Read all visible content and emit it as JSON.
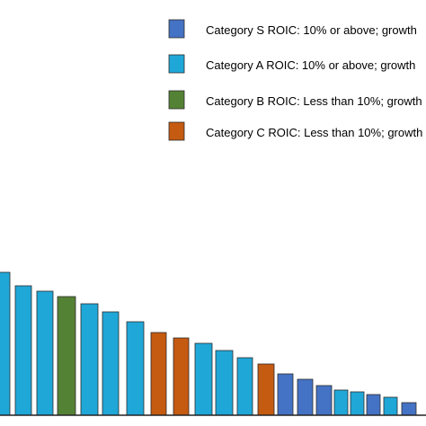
{
  "chart_data": {
    "type": "bar",
    "title": "",
    "xlabel": "",
    "ylabel": "",
    "ylim": [
      0,
      160
    ],
    "grid": false,
    "legend": {
      "position": "top-right",
      "entries": [
        {
          "key": "S",
          "label": "Category S ROIC: 10% or above; growth",
          "color": "#4472C4"
        },
        {
          "key": "A",
          "label": "Category A ROIC: 10% or above; growth",
          "color": "#1FA7D8"
        },
        {
          "key": "B",
          "label": "Category B ROIC: Less than 10%; growth",
          "color": "#548235"
        },
        {
          "key": "C",
          "label": "Category C ROIC: Less than 10%; growth",
          "color": "#C55A11"
        }
      ]
    },
    "series": [
      {
        "categories_of_bars": [
          "A",
          "A",
          "A",
          "B",
          "A",
          "A",
          "A",
          "C",
          "C",
          "A",
          "A",
          "A",
          "C",
          "S",
          "S",
          "S",
          "A",
          "A",
          "S",
          "A",
          "S"
        ],
        "values": [
          159,
          144,
          138,
          132,
          124,
          115,
          104,
          92,
          86,
          80,
          72,
          64,
          57,
          46,
          40,
          33,
          28,
          26,
          23,
          20,
          14
        ]
      }
    ]
  }
}
